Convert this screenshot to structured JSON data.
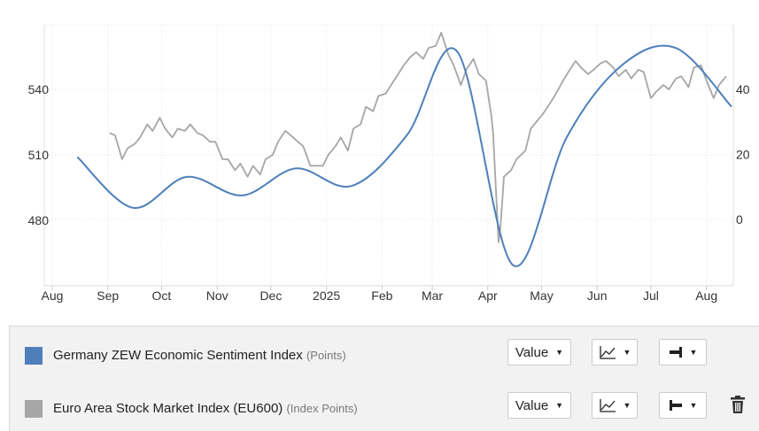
{
  "colors": {
    "zew": "#4e7fba",
    "stocks": "#a6a6a6",
    "grid": "#e4e4e4"
  },
  "chart_data": {
    "type": "line",
    "x_tick_labels": [
      "Aug",
      "Sep",
      "Oct",
      "Nov",
      "Dec",
      "2025",
      "Feb",
      "Mar",
      "Apr",
      "May",
      "Jun",
      "Jul",
      "Aug"
    ],
    "left_axis": {
      "ticks": [
        480,
        510,
        540
      ]
    },
    "right_axis": {
      "ticks": [
        0,
        20,
        40
      ]
    },
    "grid": true,
    "series": [
      {
        "name": "Germany ZEW Economic Sentiment Index",
        "unit": "Points",
        "axis": "right",
        "color": "#4e7fba",
        "x": [
          "2024-08",
          "2024-09",
          "2024-10",
          "2024-11",
          "2024-12",
          "2025-01",
          "2025-02",
          "2025-03",
          "2025-04",
          "2025-05",
          "2025-06",
          "2025-07",
          "2025-08"
        ],
        "values": [
          19.2,
          3.6,
          13.1,
          7.4,
          15.7,
          10.3,
          26.0,
          51.6,
          -14.0,
          25.2,
          47.5,
          52.7,
          34.7
        ]
      },
      {
        "name": "Euro Area Stock Market Index (EU600)",
        "unit": "Index Points",
        "axis": "left",
        "color": "#a6a6a6",
        "x": [
          "2024-09-02",
          "2024-09-05",
          "2024-09-09",
          "2024-09-12",
          "2024-09-16",
          "2024-09-19",
          "2024-09-23",
          "2024-09-26",
          "2024-09-30",
          "2024-10-03",
          "2024-10-07",
          "2024-10-10",
          "2024-10-14",
          "2024-10-17",
          "2024-10-21",
          "2024-10-24",
          "2024-10-28",
          "2024-10-31",
          "2024-11-04",
          "2024-11-07",
          "2024-11-11",
          "2024-11-14",
          "2024-11-18",
          "2024-11-21",
          "2024-11-25",
          "2024-11-28",
          "2024-12-02",
          "2024-12-05",
          "2024-12-09",
          "2024-12-12",
          "2024-12-16",
          "2024-12-19",
          "2024-12-23",
          "2024-12-30",
          "2025-01-02",
          "2025-01-06",
          "2025-01-09",
          "2025-01-13",
          "2025-01-16",
          "2025-01-20",
          "2025-01-23",
          "2025-01-27",
          "2025-01-30",
          "2025-02-03",
          "2025-02-06",
          "2025-02-10",
          "2025-02-13",
          "2025-02-17",
          "2025-02-20",
          "2025-02-24",
          "2025-02-27",
          "2025-03-03",
          "2025-03-06",
          "2025-03-10",
          "2025-03-13",
          "2025-03-17",
          "2025-03-20",
          "2025-03-24",
          "2025-03-27",
          "2025-03-31",
          "2025-04-03",
          "2025-04-04",
          "2025-04-07",
          "2025-04-08",
          "2025-04-09",
          "2025-04-10",
          "2025-04-14",
          "2025-04-17",
          "2025-04-22",
          "2025-04-25",
          "2025-04-29",
          "2025-05-02",
          "2025-05-06",
          "2025-05-09",
          "2025-05-13",
          "2025-05-16",
          "2025-05-20",
          "2025-05-23",
          "2025-05-27",
          "2025-05-30",
          "2025-06-03",
          "2025-06-06",
          "2025-06-10",
          "2025-06-13",
          "2025-06-17",
          "2025-06-20",
          "2025-06-24",
          "2025-06-27",
          "2025-07-01",
          "2025-07-04",
          "2025-07-08",
          "2025-07-11",
          "2025-07-15",
          "2025-07-18",
          "2025-07-22",
          "2025-07-25",
          "2025-07-29",
          "2025-08-01",
          "2025-08-05",
          "2025-08-08",
          "2025-08-12"
        ],
        "values": [
          520,
          519,
          508,
          513,
          515,
          518,
          524,
          521,
          527,
          522,
          518,
          522,
          521,
          524,
          520,
          519,
          516,
          516,
          508,
          508,
          503,
          506,
          500,
          505,
          501,
          508,
          510,
          516,
          521,
          519,
          516,
          514,
          505,
          505,
          510,
          514,
          518,
          512,
          522,
          524,
          532,
          530,
          537,
          538,
          542,
          547,
          551,
          555,
          557,
          554,
          559,
          560,
          566,
          556,
          551,
          542,
          549,
          554,
          547,
          544,
          528,
          520,
          470,
          476,
          488,
          500,
          503,
          508,
          512,
          522,
          526,
          529,
          534,
          538,
          544,
          548,
          553,
          550,
          547,
          549,
          552,
          553,
          550,
          546,
          549,
          545,
          549,
          548,
          536,
          539,
          542,
          540,
          545,
          546,
          541,
          550,
          551,
          544,
          536,
          542,
          546
        ]
      }
    ]
  },
  "legend": [
    {
      "name": "Germany ZEW Economic Sentiment Index",
      "unit": "(Points)",
      "value_label": "Value"
    },
    {
      "name": "Euro Area Stock Market Index (EU600)",
      "unit": "(Index Points)",
      "value_label": "Value"
    }
  ],
  "icons": {
    "chart_type": "line-chart-icon",
    "axis_right": "axis-right-icon",
    "axis_left": "axis-left-icon",
    "remove": "trash-icon"
  }
}
